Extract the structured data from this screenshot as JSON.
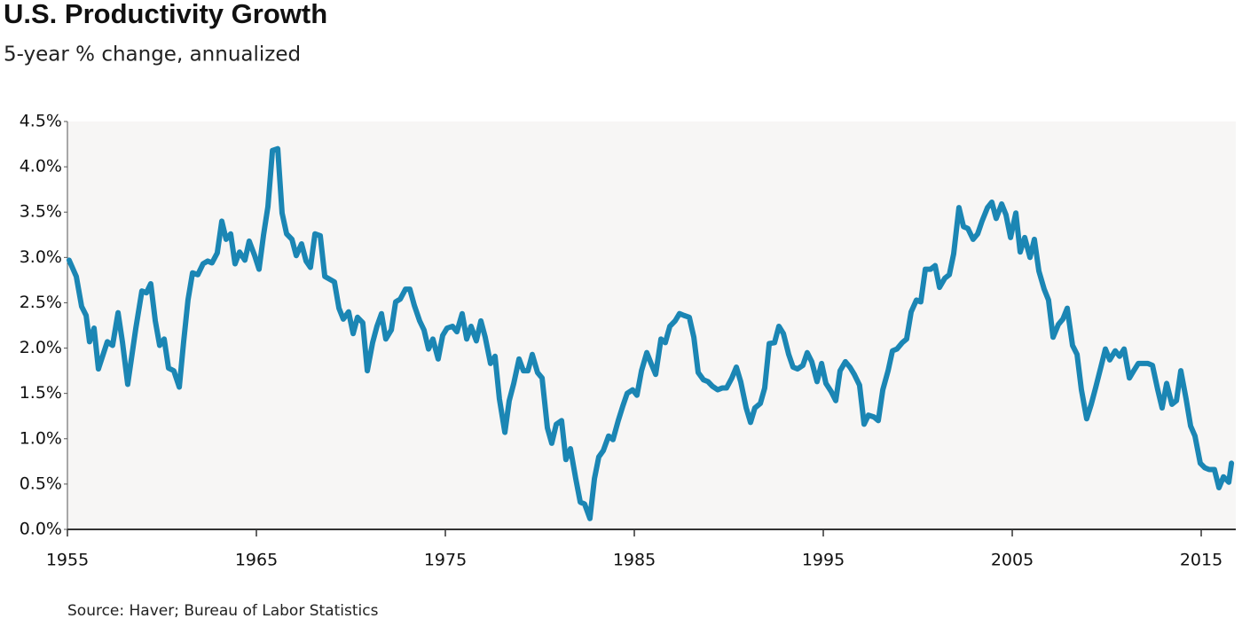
{
  "chart_data": {
    "type": "line",
    "title": "U.S. Productivity Growth",
    "subtitle": "5-year % change, annualized",
    "source": "Source: Haver; Bureau of Labor Statistics",
    "color": "#1b86b4",
    "xlim": [
      1955,
      2016.83
    ],
    "xticks": [
      1955,
      1965,
      1975,
      1985,
      1995,
      2005,
      2015
    ],
    "ylim": [
      0,
      4.5
    ],
    "yticks": [
      {
        "value": 0,
        "label": "0.0%"
      },
      {
        "value": 0.5,
        "label": "0.5%"
      },
      {
        "value": 1,
        "label": "1.0%"
      },
      {
        "value": 1.5,
        "label": "1.5%"
      },
      {
        "value": 2,
        "label": "2.0%"
      },
      {
        "value": 2.5,
        "label": "2.5%"
      },
      {
        "value": 3,
        "label": "3.0%"
      },
      {
        "value": 3.5,
        "label": "3.5%"
      },
      {
        "value": 4,
        "label": "4.0%"
      },
      {
        "value": 4.5,
        "label": "4.5%"
      }
    ],
    "x": [
      1955.09,
      1955.47,
      1955.75,
      1955.99,
      1956.17,
      1956.41,
      1956.64,
      1957.11,
      1957.39,
      1957.68,
      1957.91,
      1958.19,
      1958.62,
      1958.94,
      1959.18,
      1959.41,
      1959.65,
      1959.88,
      1960.12,
      1960.35,
      1960.63,
      1960.92,
      1961.15,
      1961.38,
      1961.62,
      1961.9,
      1962.18,
      1962.42,
      1962.65,
      1962.93,
      1963.17,
      1963.4,
      1963.64,
      1963.87,
      1964.11,
      1964.39,
      1964.62,
      1964.91,
      1965.14,
      1965.38,
      1965.61,
      1965.85,
      1966.13,
      1966.36,
      1966.6,
      1966.88,
      1967.11,
      1967.39,
      1967.63,
      1967.86,
      1968.1,
      1968.38,
      1968.62,
      1969.13,
      1969.37,
      1969.6,
      1969.88,
      1970.12,
      1970.35,
      1970.63,
      1970.87,
      1971.15,
      1971.38,
      1971.62,
      1971.85,
      1972.14,
      1972.37,
      1972.61,
      1972.89,
      1973.12,
      1973.36,
      1973.64,
      1973.87,
      1974.11,
      1974.34,
      1974.62,
      1974.86,
      1975.09,
      1975.38,
      1975.61,
      1975.89,
      1976.13,
      1976.36,
      1976.64,
      1976.88,
      1977.11,
      1977.39,
      1977.63,
      1977.86,
      1978.15,
      1978.38,
      1978.62,
      1978.9,
      1979.13,
      1979.37,
      1979.6,
      1979.88,
      1980.12,
      1980.4,
      1980.63,
      1980.87,
      1981.15,
      1981.38,
      1981.62,
      1981.9,
      1982.14,
      1982.37,
      1982.65,
      1982.89,
      1983.12,
      1983.36,
      1983.64,
      1983.87,
      1984.15,
      1984.39,
      1984.62,
      1984.91,
      1985.14,
      1985.38,
      1985.66,
      1985.89,
      1986.13,
      1986.41,
      1986.64,
      1986.88,
      1987.16,
      1987.39,
      1987.63,
      1987.91,
      1988.15,
      1988.38,
      1988.66,
      1988.9,
      1989.13,
      1989.41,
      1989.65,
      1989.88,
      1990.16,
      1990.4,
      1990.63,
      1990.92,
      1991.15,
      1991.38,
      1991.67,
      1991.9,
      1992.14,
      1992.42,
      1992.65,
      1992.89,
      1993.17,
      1993.4,
      1993.64,
      1993.92,
      1994.15,
      1994.39,
      1994.67,
      1994.91,
      1995.14,
      1995.42,
      1995.66,
      1995.89,
      1996.17,
      1996.41,
      1996.64,
      1996.92,
      1997.16,
      1997.39,
      1997.68,
      1997.91,
      1998.15,
      1998.43,
      1998.66,
      1998.9,
      1999.18,
      1999.41,
      1999.65,
      1999.93,
      2000.16,
      2000.4,
      2000.68,
      2000.92,
      2001.15,
      2001.43,
      2001.67,
      2001.9,
      2002.18,
      2002.42,
      2002.65,
      2002.93,
      2003.17,
      2003.4,
      2003.69,
      2003.92,
      2004.15,
      2004.44,
      2004.67,
      2004.91,
      2005.19,
      2005.42,
      2005.66,
      2005.94,
      2006.17,
      2006.41,
      2006.69,
      2006.92,
      2007.16,
      2007.44,
      2007.68,
      2007.91,
      2008.19,
      2008.43,
      2008.66,
      2008.94,
      2009.18,
      2009.41,
      2009.69,
      2009.93,
      2010.16,
      2010.45,
      2010.68,
      2010.92,
      2011.2,
      2011.43,
      2011.67,
      2011.95,
      2012.18,
      2012.42,
      2012.7,
      2012.93,
      2013.17,
      2013.45,
      2013.69,
      2013.92,
      2014.2,
      2014.44,
      2014.67,
      2014.95,
      2015.19,
      2015.42,
      2015.7,
      2015.94,
      2016.18,
      2016.46,
      2016.6
    ],
    "values": [
      2.97,
      2.79,
      2.46,
      2.36,
      2.07,
      2.22,
      1.77,
      2.07,
      2.03,
      2.39,
      2.07,
      1.6,
      2.22,
      2.63,
      2.61,
      2.71,
      2.3,
      2.03,
      2.1,
      1.78,
      1.75,
      1.57,
      2.07,
      2.53,
      2.83,
      2.81,
      2.93,
      2.96,
      2.94,
      3.05,
      3.4,
      3.2,
      3.26,
      2.93,
      3.06,
      2.97,
      3.18,
      3.02,
      2.87,
      3.25,
      3.56,
      4.18,
      4.2,
      3.49,
      3.26,
      3.2,
      3.02,
      3.15,
      2.96,
      2.89,
      3.26,
      3.24,
      2.79,
      2.73,
      2.44,
      2.32,
      2.4,
      2.16,
      2.34,
      2.28,
      1.75,
      2.06,
      2.24,
      2.38,
      2.1,
      2.2,
      2.51,
      2.54,
      2.65,
      2.65,
      2.47,
      2.3,
      2.2,
      1.99,
      2.1,
      1.88,
      2.14,
      2.22,
      2.24,
      2.18,
      2.38,
      2.1,
      2.24,
      2.08,
      2.3,
      2.12,
      1.83,
      1.91,
      1.44,
      1.07,
      1.42,
      1.61,
      1.88,
      1.75,
      1.75,
      1.93,
      1.73,
      1.67,
      1.12,
      0.95,
      1.16,
      1.2,
      0.77,
      0.89,
      0.56,
      0.3,
      0.28,
      0.12,
      0.56,
      0.8,
      0.87,
      1.03,
      0.99,
      1.2,
      1.36,
      1.5,
      1.54,
      1.48,
      1.75,
      1.95,
      1.83,
      1.71,
      2.1,
      2.06,
      2.24,
      2.3,
      2.38,
      2.36,
      2.34,
      2.12,
      1.73,
      1.65,
      1.63,
      1.58,
      1.54,
      1.56,
      1.56,
      1.67,
      1.79,
      1.63,
      1.34,
      1.18,
      1.34,
      1.39,
      1.56,
      2.05,
      2.06,
      2.24,
      2.16,
      1.93,
      1.79,
      1.77,
      1.81,
      1.95,
      1.85,
      1.63,
      1.83,
      1.61,
      1.52,
      1.42,
      1.75,
      1.85,
      1.79,
      1.71,
      1.59,
      1.16,
      1.26,
      1.24,
      1.2,
      1.54,
      1.75,
      1.97,
      1.99,
      2.06,
      2.1,
      2.4,
      2.53,
      2.51,
      2.87,
      2.87,
      2.91,
      2.67,
      2.77,
      2.81,
      3.04,
      3.55,
      3.34,
      3.32,
      3.2,
      3.26,
      3.4,
      3.55,
      3.61,
      3.43,
      3.59,
      3.47,
      3.22,
      3.49,
      3.06,
      3.22,
      3.0,
      3.2,
      2.85,
      2.65,
      2.53,
      2.12,
      2.26,
      2.32,
      2.44,
      2.03,
      1.93,
      1.54,
      1.22,
      1.38,
      1.56,
      1.79,
      1.99,
      1.87,
      1.97,
      1.91,
      1.99,
      1.67,
      1.75,
      1.83,
      1.83,
      1.83,
      1.81,
      1.54,
      1.34,
      1.61,
      1.38,
      1.42,
      1.75,
      1.44,
      1.14,
      1.03,
      0.73,
      0.68,
      0.66,
      0.66,
      0.46,
      0.58,
      0.52,
      0.73
    ]
  }
}
